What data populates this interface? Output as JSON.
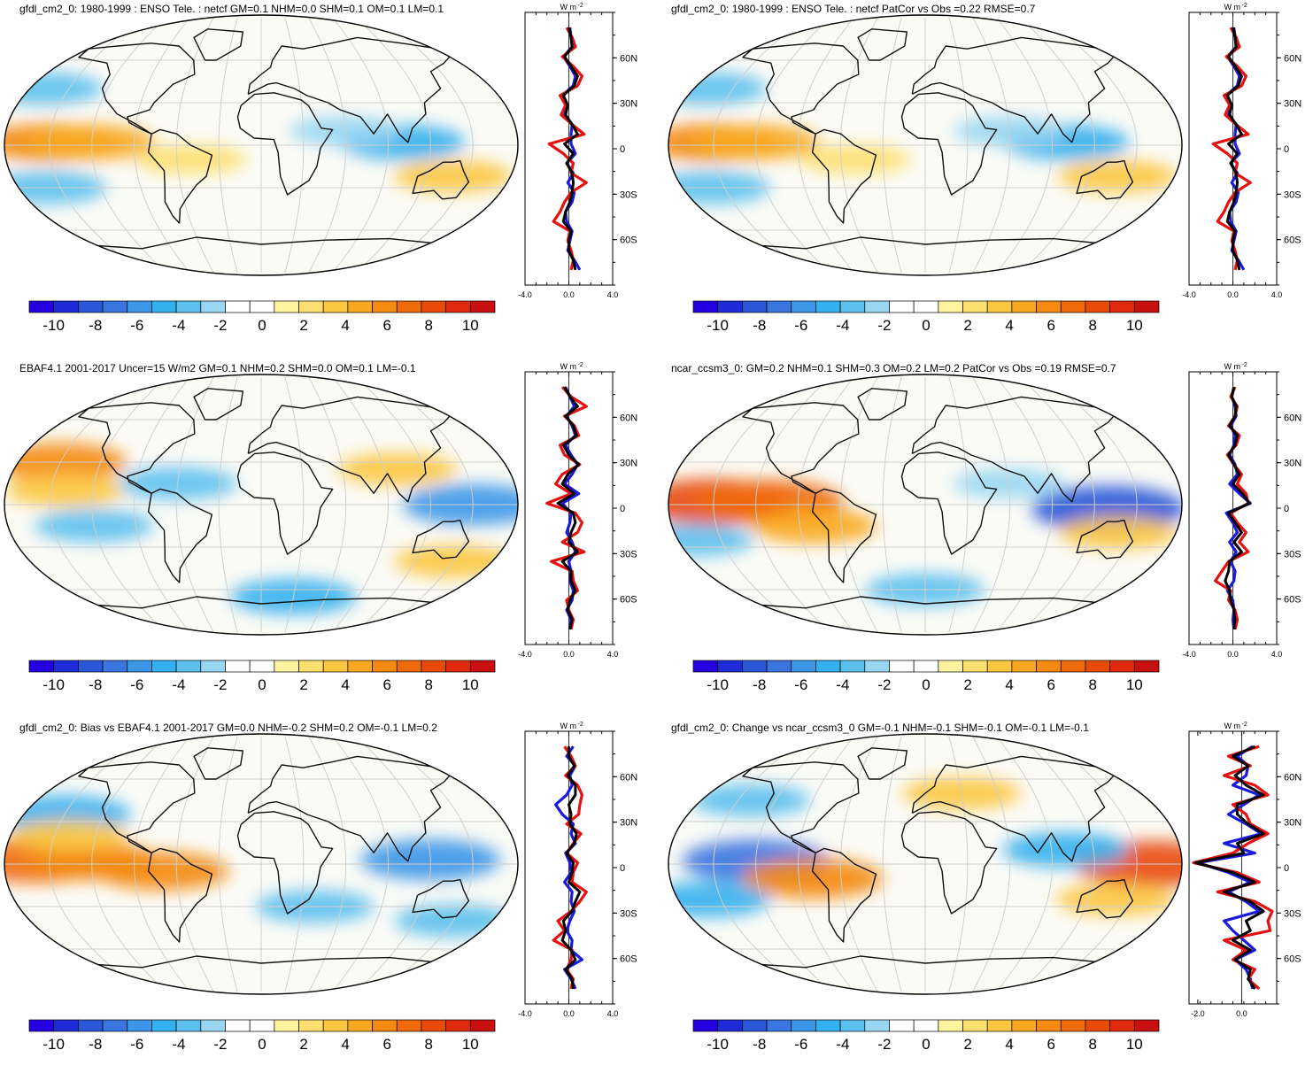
{
  "figure": {
    "color_scale": {
      "levels": [
        -10,
        -8,
        -6,
        -4,
        -2,
        0,
        2,
        4,
        6,
        8,
        10
      ],
      "colors": [
        "#2400e0",
        "#1f2bd8",
        "#2a56d8",
        "#3b76e0",
        "#3c96e8",
        "#35b0ee",
        "#5cc0ee",
        "#98d6f2",
        "#ffffff",
        "#ffffff",
        "#fff3a0",
        "#fde070",
        "#fbc640",
        "#f8a820",
        "#f48a10",
        "#ef6a08",
        "#e84a08",
        "#e02a10",
        "#c81010"
      ]
    },
    "profile_series_colors": {
      "blue": "#1a1adc",
      "red": "#e61010",
      "black": "#000000"
    },
    "map_land_color": "#111111",
    "map_grid_color": "#cfcfcf"
  },
  "panels": [
    {
      "title": "gfdl_cm2_0: 1980-1999 : ENSO Tele. : netcf GM=0.1 NHM=0.0 SHM=0.1 OM=0.1 LM=0.1",
      "units": "W m",
      "units_sup": "-2",
      "lat_labels": [
        "60N",
        "30N",
        "0",
        "30S",
        "60S"
      ],
      "x_ticks": [
        "-4.0",
        "0.0",
        "4.0"
      ],
      "profile_x_range": [
        -4,
        4
      ],
      "anomaly_blobs": [
        {
          "lon": -150,
          "lat": 2,
          "value": 5
        },
        {
          "lon": -120,
          "lat": 2,
          "value": 4
        },
        {
          "lon": 140,
          "lat": -22,
          "value": 3
        },
        {
          "lon": 100,
          "lat": 2,
          "value": -4
        },
        {
          "lon": -170,
          "lat": 40,
          "value": -3
        },
        {
          "lon": -160,
          "lat": -30,
          "value": -3
        },
        {
          "lon": 60,
          "lat": 10,
          "value": -2
        },
        {
          "lon": -50,
          "lat": -10,
          "value": 2
        }
      ],
      "profiles": [
        {
          "series": "blue",
          "x": [
            0.1,
            0.2,
            0.3,
            -0.5,
            0.1,
            0.6,
            0.4,
            -0.6,
            -0.1,
            -0.4,
            0.3,
            0.2,
            0.2,
            0.6,
            -0.2,
            0.4,
            -0.1,
            0.5,
            0.3,
            -0.3,
            -0.2,
            0.3,
            0.1,
            -0.1,
            0.5,
            1
          ]
        },
        {
          "series": "red",
          "x": [
            -0.2,
            0.3,
            0.6,
            -0.6,
            0.4,
            1.2,
            0.8,
            -0.8,
            -0.3,
            -0.7,
            0.3,
            1.4,
            -1.8,
            -0.5,
            0.4,
            0.2,
            1.6,
            0.2,
            -0.4,
            -0.8,
            -1.4,
            0.1,
            -0.1,
            0.2,
            0.4,
            0.2
          ]
        },
        {
          "series": "black",
          "x": [
            0,
            0.2,
            0.3,
            -0.4,
            0.2,
            0.8,
            0.5,
            -0.5,
            -0.1,
            -0.3,
            0.3,
            0.8,
            -0.4,
            0.4,
            -0.2,
            0.3,
            0.4,
            0.3,
            0.1,
            -0.3,
            -0.5,
            0.2,
            0,
            0,
            0.4,
            0.6
          ]
        }
      ]
    },
    {
      "title": "gfdl_cm2_0: 1980-1999 : ENSO Tele. : netcf PatCor vs Obs =0.22 RMSE=0.7",
      "units": "W m",
      "units_sup": "-2",
      "lat_labels": [
        "60N",
        "30N",
        "0",
        "30S",
        "60S"
      ],
      "x_ticks": [
        "-4.0",
        "0.0",
        "4.0"
      ],
      "profile_x_range": [
        -4,
        4
      ],
      "anomaly_blobs": [
        {
          "lon": -150,
          "lat": 2,
          "value": 5
        },
        {
          "lon": -120,
          "lat": 2,
          "value": 4
        },
        {
          "lon": 140,
          "lat": -22,
          "value": 3
        },
        {
          "lon": 100,
          "lat": 2,
          "value": -4
        },
        {
          "lon": -170,
          "lat": 40,
          "value": -3
        },
        {
          "lon": -160,
          "lat": -30,
          "value": -3
        },
        {
          "lon": 60,
          "lat": 10,
          "value": -2
        },
        {
          "lon": -50,
          "lat": -10,
          "value": 2
        }
      ],
      "profiles": [
        {
          "series": "blue",
          "x": [
            0.1,
            0.2,
            0.3,
            -0.5,
            0.1,
            0.6,
            0.4,
            -0.6,
            -0.1,
            -0.4,
            0.3,
            0.2,
            0.2,
            0.6,
            -0.2,
            0.4,
            -0.1,
            0.5,
            0.3,
            -0.3,
            -0.2,
            0.3,
            0.1,
            -0.1,
            0.5,
            1
          ]
        },
        {
          "series": "red",
          "x": [
            -0.2,
            0.3,
            0.6,
            -0.6,
            0.4,
            1.2,
            0.8,
            -0.8,
            -0.3,
            -0.7,
            0.3,
            1.4,
            -1.8,
            -0.5,
            0.4,
            0.2,
            1.6,
            0.2,
            -0.4,
            -0.8,
            -1.4,
            0.1,
            -0.1,
            0.2,
            0.4,
            0.2
          ]
        },
        {
          "series": "black",
          "x": [
            0,
            0.2,
            0.3,
            -0.4,
            0.2,
            0.8,
            0.5,
            -0.5,
            -0.1,
            -0.3,
            0.3,
            0.8,
            -0.4,
            0.4,
            -0.2,
            0.3,
            0.4,
            0.3,
            0.1,
            -0.3,
            -0.5,
            0.2,
            0,
            0,
            0.4,
            0.6
          ]
        }
      ]
    },
    {
      "title": "EBAF4.1 2001-2017 Uncer=15 W/m2 GM=0.1 NHM=0.2 SHM=0.0 OM=0.1 LM=-0.1",
      "units": "W m",
      "units_sup": "-2",
      "lat_labels": [
        "60N",
        "30N",
        "0",
        "30S",
        "60S"
      ],
      "x_ticks": [
        "-4.0",
        "0.0",
        "4.0"
      ],
      "profile_x_range": [
        -4,
        4
      ],
      "anomaly_blobs": [
        {
          "lon": -150,
          "lat": 30,
          "value": 5
        },
        {
          "lon": -140,
          "lat": 10,
          "value": 3
        },
        {
          "lon": 150,
          "lat": 0,
          "value": -6
        },
        {
          "lon": -120,
          "lat": -15,
          "value": -3
        },
        {
          "lon": 100,
          "lat": 25,
          "value": 3
        },
        {
          "lon": -60,
          "lat": 15,
          "value": -3
        },
        {
          "lon": 30,
          "lat": -65,
          "value": -4
        },
        {
          "lon": 150,
          "lat": -40,
          "value": 3
        }
      ],
      "profiles": [
        {
          "series": "blue",
          "x": [
            -0.3,
            0.1,
            0.5,
            -0.2,
            0.3,
            0.6,
            -0.3,
            0.2,
            0.8,
            0.3,
            -0.4,
            0.9,
            -0.6,
            0.2,
            0.1,
            -0.2,
            0.3,
            0.6,
            0,
            0.2,
            0.1,
            0.4,
            0.3,
            -0.2,
            0.2,
            0.1
          ]
        },
        {
          "series": "red",
          "x": [
            -0.6,
            0.2,
            1.6,
            -0.4,
            0.5,
            0.9,
            -0.8,
            -0.4,
            1,
            -0.6,
            -1.2,
            0.2,
            -2,
            0.6,
            1.2,
            0.8,
            -0.6,
            1.4,
            -1.6,
            0.3,
            0.4,
            0.8,
            -0.2,
            0,
            0.4,
            0.2
          ]
        },
        {
          "series": "black",
          "x": [
            -0.4,
            0.1,
            0.8,
            -0.3,
            0.4,
            0.7,
            -0.5,
            0,
            0.9,
            -0.1,
            -0.6,
            0.5,
            -1,
            0.4,
            0.6,
            0.2,
            0,
            0.8,
            -0.6,
            0.2,
            0.2,
            0.6,
            0.1,
            -0.1,
            0.3,
            0.1
          ]
        }
      ]
    },
    {
      "title": "ncar_ccsm3_0: GM=0.2 NHM=0.1 SHM=0.3 OM=0.2 LM=0.2 PatCor vs Obs =0.19 RMSE=0.7",
      "units": "W m",
      "units_sup": "-2",
      "lat_labels": [
        "60N",
        "30N",
        "0",
        "30S",
        "60S"
      ],
      "x_ticks": [
        "-4.0",
        "0.0",
        "4.0"
      ],
      "profile_x_range": [
        -4,
        4
      ],
      "anomaly_blobs": [
        {
          "lon": -150,
          "lat": 2,
          "value": 8
        },
        {
          "lon": -110,
          "lat": 2,
          "value": 7
        },
        {
          "lon": 130,
          "lat": -3,
          "value": -8
        },
        {
          "lon": 140,
          "lat": -20,
          "value": 3
        },
        {
          "lon": -80,
          "lat": -15,
          "value": 4
        },
        {
          "lon": -170,
          "lat": -25,
          "value": -3
        },
        {
          "lon": 0,
          "lat": -60,
          "value": -3
        },
        {
          "lon": 60,
          "lat": 15,
          "value": -2
        }
      ],
      "profiles": [
        {
          "series": "blue",
          "x": [
            0.1,
            -0.1,
            0.2,
            0.3,
            -0.2,
            0.2,
            0.1,
            -0.3,
            0.2,
            0.4,
            -0.3,
            0.6,
            1.6,
            -0.6,
            0,
            0.4,
            -0.3,
            0.3,
            -0.2,
            0.2,
            0.1,
            -0.5,
            0,
            0.1,
            0,
            0.1
          ]
        },
        {
          "series": "red",
          "x": [
            0.2,
            -0.2,
            0.4,
            0.2,
            -0.4,
            0.6,
            0.3,
            -0.5,
            0.1,
            0.8,
            0.4,
            1.2,
            1.4,
            -0.2,
            0.4,
            1.2,
            0.6,
            1.4,
            -0.4,
            -1,
            -1.6,
            -0.2,
            -0.4,
            0.2,
            0.4,
            0.2
          ]
        },
        {
          "series": "black",
          "x": [
            0.1,
            -0.1,
            0.3,
            0.2,
            -0.3,
            0.4,
            0.2,
            -0.4,
            0.1,
            0.6,
            0,
            0.9,
            1.5,
            -0.4,
            0.2,
            0.8,
            0.1,
            0.8,
            -0.3,
            -0.4,
            -0.7,
            -0.3,
            -0.2,
            0.1,
            0.2,
            0.1
          ]
        }
      ]
    },
    {
      "title": "gfdl_cm2_0: Bias vs EBAF4.1 2001-2017 GM=0.0 NHM=-0.2 SHM=0.2 OM=-0.1 LM=0.2",
      "units": "W m",
      "units_sup": "-2",
      "lat_labels": [
        "60N",
        "30N",
        "0",
        "30S",
        "60S"
      ],
      "x_ticks": [
        "-4.0",
        "0.0",
        "4.0"
      ],
      "profile_x_range": [
        -4,
        4
      ],
      "anomaly_blobs": [
        {
          "lon": -160,
          "lat": 2,
          "value": 7
        },
        {
          "lon": -120,
          "lat": 2,
          "value": 5
        },
        {
          "lon": 120,
          "lat": 3,
          "value": -6
        },
        {
          "lon": -150,
          "lat": 35,
          "value": -5
        },
        {
          "lon": -140,
          "lat": 20,
          "value": 3
        },
        {
          "lon": -70,
          "lat": -5,
          "value": 5
        },
        {
          "lon": 150,
          "lat": -40,
          "value": -3
        },
        {
          "lon": 40,
          "lat": -30,
          "value": -3
        }
      ],
      "profiles": [
        {
          "series": "blue",
          "x": [
            0.4,
            -0.2,
            0.6,
            0.1,
            0.3,
            -0.2,
            -1.2,
            -0.6,
            0.4,
            0.2,
            0.6,
            -0.3,
            0.1,
            0.2,
            -0.4,
            0.3,
            0.2,
            0.5,
            0.1,
            -0.2,
            0.3,
            0.2,
            1.2,
            -0.4,
            0.2,
            0.6
          ]
        },
        {
          "series": "red",
          "x": [
            -0.4,
            0.2,
            0.6,
            -0.3,
            0.8,
            1.2,
            1,
            0.9,
            -0.2,
            1.1,
            0.4,
            -0.2,
            0.8,
            0.4,
            0.3,
            1.6,
            1,
            0.2,
            -1,
            -0.4,
            -1.4,
            0.3,
            0.2,
            -0.2,
            0.4,
            0.2
          ]
        },
        {
          "series": "black",
          "x": [
            0,
            0,
            0.5,
            -0.1,
            0.6,
            0.6,
            0,
            0.2,
            0.1,
            0.7,
            0.5,
            -0.2,
            0.4,
            0.3,
            0,
            1,
            0.6,
            0.3,
            -0.5,
            -0.3,
            -0.6,
            0.2,
            0.6,
            -0.3,
            0.3,
            0.4
          ]
        }
      ]
    },
    {
      "title": "gfdl_cm2_0: Change vs ncar_ccsm3_0 GM=-0.1 NHM=-0.1 SHM=-0.1 OM=-0.1 LM=-0.1",
      "units": "W m",
      "units_sup": "-2",
      "lat_labels": [
        "60N",
        "30N",
        "0",
        "30S",
        "60S"
      ],
      "x_ticks": [
        "-2.0",
        "0.0"
      ],
      "profile_x_range": [
        -2.4,
        1.6
      ],
      "anomaly_blobs": [
        {
          "lon": 160,
          "lat": 0,
          "value": 8
        },
        {
          "lon": -120,
          "lat": 2,
          "value": -7
        },
        {
          "lon": -80,
          "lat": -10,
          "value": 6
        },
        {
          "lon": -160,
          "lat": -25,
          "value": -4
        },
        {
          "lon": 140,
          "lat": -25,
          "value": 3
        },
        {
          "lon": 100,
          "lat": 10,
          "value": -4
        },
        {
          "lon": 30,
          "lat": 50,
          "value": 3
        },
        {
          "lon": -140,
          "lat": 45,
          "value": -3
        }
      ],
      "profiles": [
        {
          "series": "blue",
          "x": [
            0.5,
            -0.2,
            0.3,
            0.2,
            -0.4,
            0.8,
            0.1,
            -0.6,
            0.2,
            0.9,
            -0.8,
            0.6,
            -2,
            -0.6,
            0.4,
            -0.6,
            0.2,
            0.8,
            -0.8,
            -0.4,
            0.1,
            0.6,
            -0.3,
            0.2,
            0.4,
            0.5
          ]
        },
        {
          "series": "red",
          "x": [
            0.8,
            -0.6,
            0.4,
            -0.8,
            0.6,
            1.2,
            -0.4,
            0.2,
            0.4,
            1.2,
            0.3,
            -0.4,
            -2.2,
            -0.2,
            0.8,
            -1.1,
            0.6,
            1.4,
            1.2,
            1.3,
            -0.8,
            0.2,
            -0.4,
            0.6,
            0.3,
            0.8
          ]
        },
        {
          "series": "black",
          "x": [
            0.6,
            -0.4,
            0.3,
            -0.3,
            0.2,
            1,
            -0.2,
            -0.2,
            0.3,
            1,
            -0.2,
            0.1,
            -2.1,
            -0.4,
            0.6,
            -0.8,
            0.4,
            1,
            0.2,
            0.4,
            -0.4,
            0.4,
            -0.3,
            0.4,
            0.3,
            0.6
          ]
        }
      ]
    }
  ]
}
